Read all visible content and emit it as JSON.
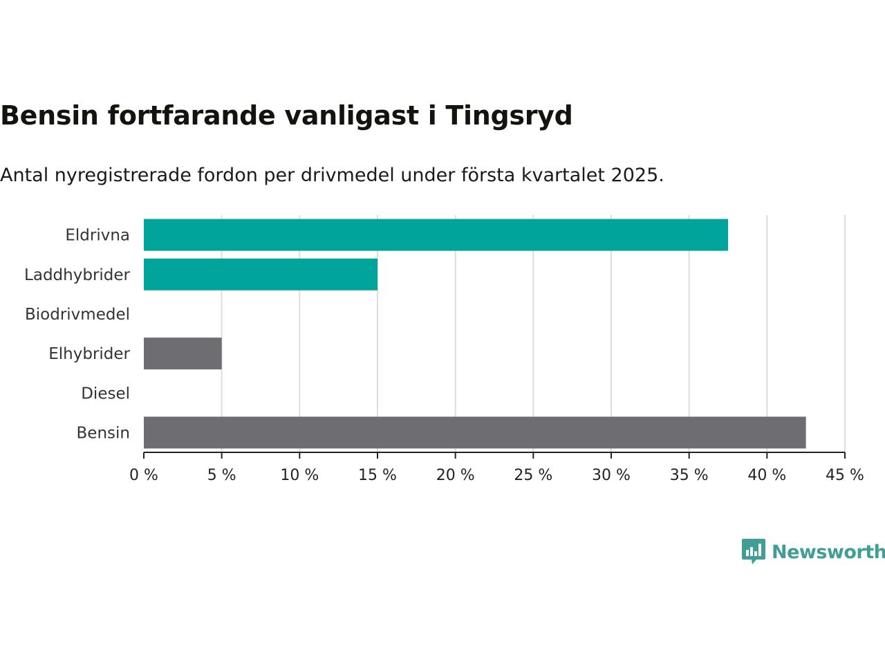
{
  "title": "Bensin fortfarande vanligast i Tingsryd",
  "subtitle": "Antal nyregistrerade fordon per drivmedel under första kvartalet 2025.",
  "brand": "Newsworthy",
  "colors": {
    "highlight": "#00a49a",
    "neutral": "#6e6d72",
    "gridline": "#dddddd",
    "axis": "#222222",
    "brand": "#3f9f96"
  },
  "chart_data": {
    "type": "bar",
    "orientation": "horizontal",
    "categories": [
      "Eldrivna",
      "Laddhybrider",
      "Biodrivmedel",
      "Elhybrider",
      "Diesel",
      "Bensin"
    ],
    "values": [
      37.5,
      15,
      0,
      5,
      0,
      42.5
    ],
    "bar_colors": [
      "highlight",
      "highlight",
      "neutral",
      "neutral",
      "neutral",
      "neutral"
    ],
    "xlim": [
      0,
      45
    ],
    "xticks": [
      0,
      5,
      10,
      15,
      20,
      25,
      30,
      35,
      40,
      45
    ],
    "tick_suffix": " %",
    "grid": true,
    "legend": "none"
  }
}
